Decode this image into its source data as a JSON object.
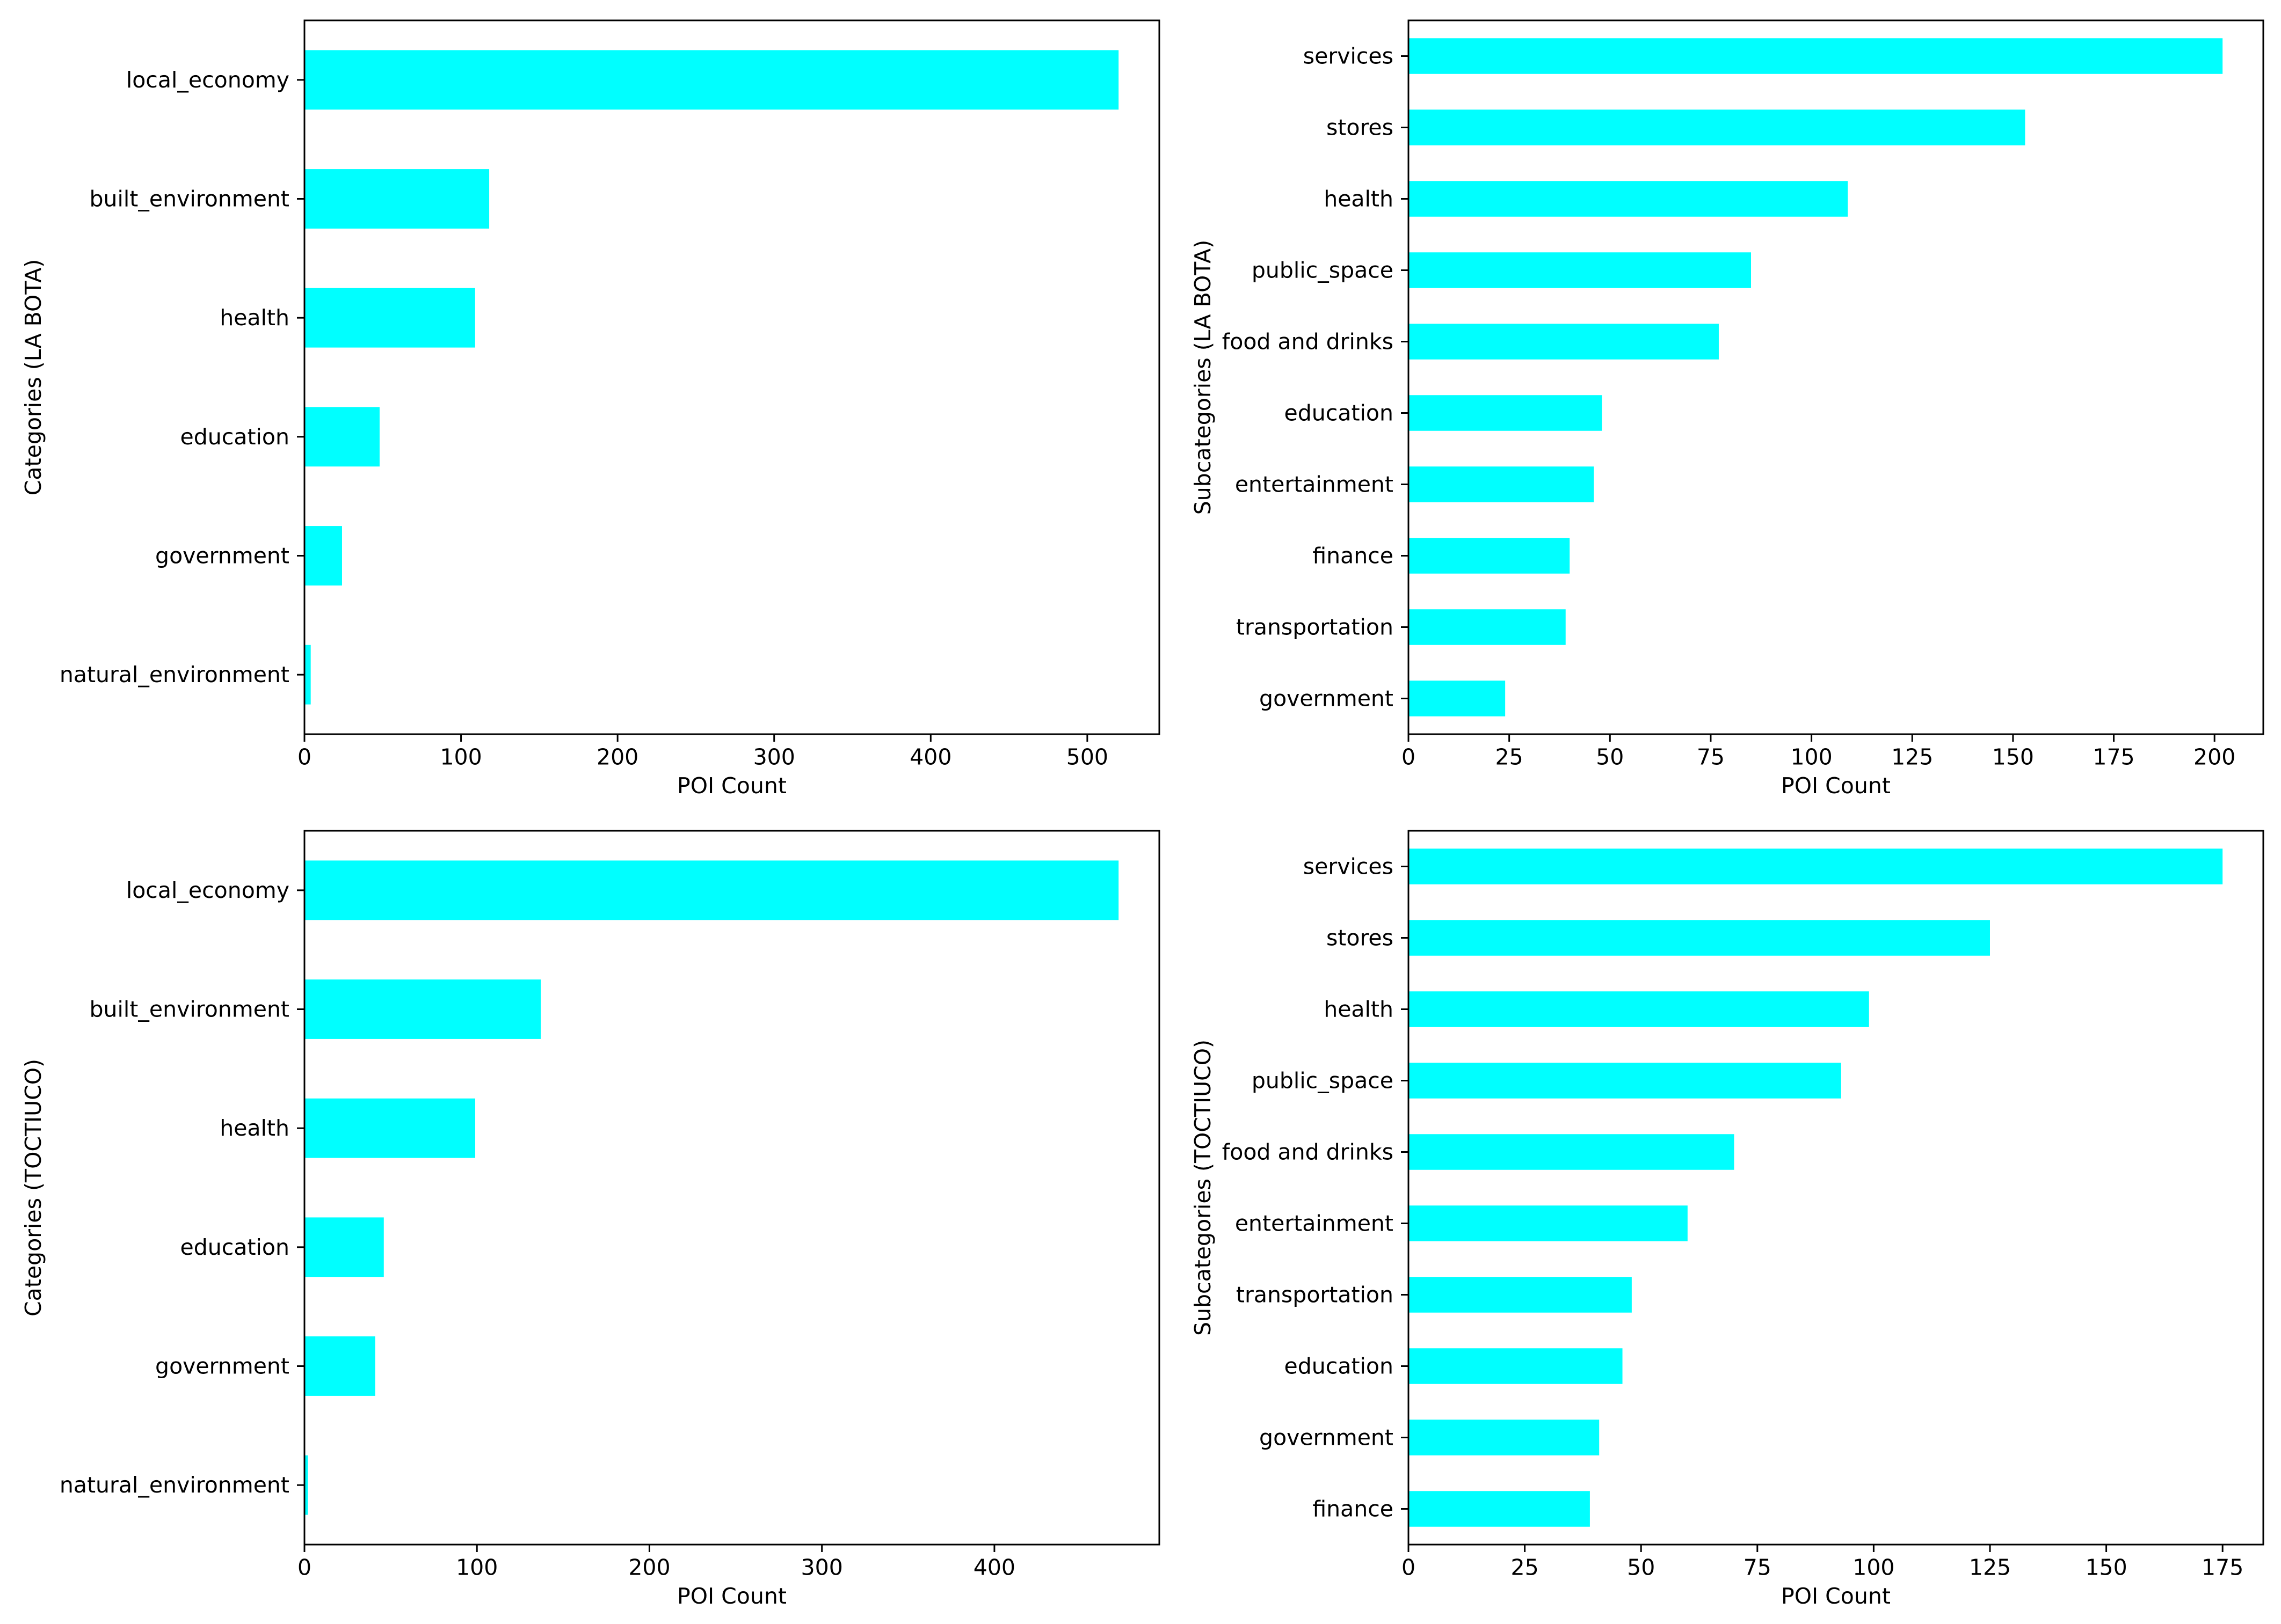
{
  "chart_data": [
    {
      "type": "bar",
      "orientation": "horizontal",
      "title": "",
      "categories": [
        "local_economy",
        "built_environment",
        "health",
        "education",
        "government",
        "natural_environment"
      ],
      "values": [
        520,
        118,
        109,
        48,
        24,
        4
      ],
      "xlabel": "POI Count",
      "ylabel": "Categories (LA BOTA)",
      "xlim": [
        0,
        546
      ],
      "xticks": [
        0,
        100,
        200,
        300,
        400,
        500
      ],
      "bar_color": "#00FFFF",
      "grid": false
    },
    {
      "type": "bar",
      "orientation": "horizontal",
      "title": "",
      "categories": [
        "services",
        "stores",
        "health",
        "public_space",
        "food and drinks",
        "education",
        "entertainment",
        "finance",
        "transportation",
        "government"
      ],
      "values": [
        202,
        153,
        109,
        85,
        77,
        48,
        46,
        40,
        39,
        24
      ],
      "xlabel": "POI Count",
      "ylabel": "Subcategories (LA BOTA)",
      "xlim": [
        0,
        212.1
      ],
      "xticks": [
        0,
        25,
        50,
        75,
        100,
        125,
        150,
        175,
        200
      ],
      "bar_color": "#00FFFF",
      "grid": false
    },
    {
      "type": "bar",
      "orientation": "horizontal",
      "title": "",
      "categories": [
        "local_economy",
        "built_environment",
        "health",
        "education",
        "government",
        "natural_environment"
      ],
      "values": [
        472,
        137,
        99,
        46,
        41,
        2
      ],
      "xlabel": "POI Count",
      "ylabel": "Categories (TOCTIUCO)",
      "xlim": [
        0,
        495.6
      ],
      "xticks": [
        0,
        100,
        200,
        300,
        400
      ],
      "bar_color": "#00FFFF",
      "grid": false
    },
    {
      "type": "bar",
      "orientation": "horizontal",
      "title": "",
      "categories": [
        "services",
        "stores",
        "health",
        "public_space",
        "food and drinks",
        "entertainment",
        "transportation",
        "education",
        "government",
        "finance"
      ],
      "values": [
        175,
        125,
        99,
        93,
        70,
        60,
        48,
        46,
        41,
        39
      ],
      "xlabel": "POI Count",
      "ylabel": "Subcategories (TOCTIUCO)",
      "xlim": [
        0,
        183.75
      ],
      "xticks": [
        0,
        25,
        50,
        75,
        100,
        125,
        150,
        175
      ],
      "bar_color": "#00FFFF",
      "grid": false
    }
  ]
}
